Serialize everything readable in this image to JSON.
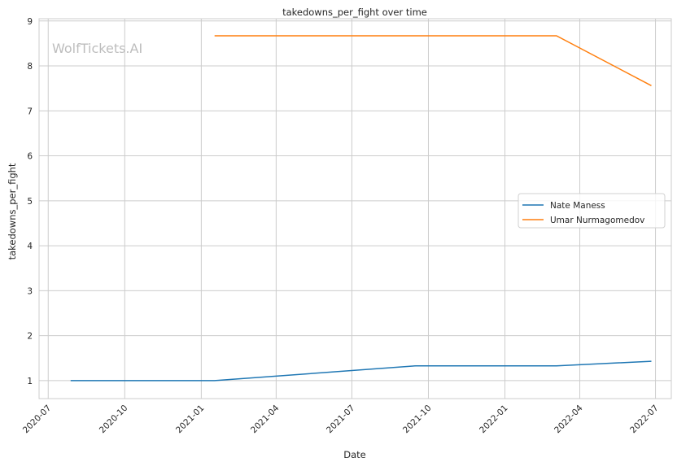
{
  "watermark": "WolfTickets.AI",
  "chart_data": {
    "type": "line",
    "title": "takedowns_per_fight over time",
    "xlabel": "Date",
    "ylabel": "takedowns_per_fight",
    "xlim": [
      "2020-06-20",
      "2022-07-20"
    ],
    "ylim": [
      0.6,
      9.05
    ],
    "xticks": [
      "2020-07",
      "2020-10",
      "2021-01",
      "2021-04",
      "2021-07",
      "2021-10",
      "2022-01",
      "2022-04",
      "2022-07"
    ],
    "yticks": [
      1,
      2,
      3,
      4,
      5,
      6,
      7,
      8,
      9
    ],
    "grid": true,
    "legend_position": "center-right",
    "series": [
      {
        "name": "Nate Maness",
        "color": "#1f77b4",
        "x": [
          "2020-07-28",
          "2021-01-17",
          "2021-09-16",
          "2022-03-04",
          "2022-06-26"
        ],
        "y": [
          1.0,
          1.0,
          1.33,
          1.33,
          1.43
        ]
      },
      {
        "name": "Umar Nurmagomedov",
        "color": "#ff7f0e",
        "x": [
          "2021-01-17",
          "2022-03-04",
          "2022-06-26"
        ],
        "y": [
          8.67,
          8.67,
          7.56
        ]
      }
    ]
  }
}
